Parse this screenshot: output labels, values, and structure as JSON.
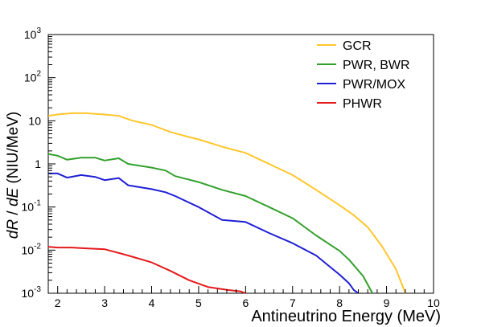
{
  "chart_data": {
    "type": "line",
    "xlabel": "Antineutrino Energy (MeV)",
    "ylabel_parts": [
      "dR",
      " / ",
      "dE",
      " (NIU/MeV)"
    ],
    "xlim": [
      1.8,
      10
    ],
    "ylim": [
      0.001,
      1000
    ],
    "yscale": "log",
    "grid": false,
    "legend_position": "top-right",
    "x_ticks": [
      {
        "v": 2,
        "label": "2"
      },
      {
        "v": 3,
        "label": "3"
      },
      {
        "v": 4,
        "label": "4"
      },
      {
        "v": 5,
        "label": "5"
      },
      {
        "v": 6,
        "label": "6"
      },
      {
        "v": 7,
        "label": "7"
      },
      {
        "v": 8,
        "label": "8"
      },
      {
        "v": 9,
        "label": "9"
      },
      {
        "v": 10,
        "label": "10"
      }
    ],
    "y_ticks": [
      {
        "v": 0.001,
        "base": "10",
        "exp": "-3"
      },
      {
        "v": 0.01,
        "base": "10",
        "exp": "-2"
      },
      {
        "v": 0.1,
        "base": "10",
        "exp": "-1"
      },
      {
        "v": 1,
        "base": "1",
        "exp": ""
      },
      {
        "v": 10,
        "base": "10",
        "exp": ""
      },
      {
        "v": 100,
        "base": "10",
        "exp": "2"
      },
      {
        "v": 1000,
        "base": "10",
        "exp": "3"
      }
    ],
    "series": [
      {
        "name": "GCR",
        "color": "#ffc62b",
        "points": [
          [
            1.8,
            13
          ],
          [
            2.0,
            14
          ],
          [
            2.3,
            15
          ],
          [
            2.6,
            15
          ],
          [
            3.0,
            14
          ],
          [
            3.3,
            13
          ],
          [
            3.6,
            10
          ],
          [
            4.0,
            8
          ],
          [
            4.4,
            5.5
          ],
          [
            4.8,
            4.2
          ],
          [
            5.0,
            3.7
          ],
          [
            5.5,
            2.5
          ],
          [
            6.0,
            1.8
          ],
          [
            6.5,
            1.0
          ],
          [
            7.0,
            0.55
          ],
          [
            7.5,
            0.25
          ],
          [
            8.0,
            0.11
          ],
          [
            8.3,
            0.065
          ],
          [
            8.6,
            0.034
          ],
          [
            8.9,
            0.0125
          ],
          [
            9.2,
            0.0036
          ],
          [
            9.4,
            0.001
          ]
        ]
      },
      {
        "name": "PWR, BWR",
        "color": "#33a02c",
        "points": [
          [
            1.8,
            1.7
          ],
          [
            2.0,
            1.55
          ],
          [
            2.2,
            1.25
          ],
          [
            2.5,
            1.4
          ],
          [
            2.8,
            1.4
          ],
          [
            3.0,
            1.2
          ],
          [
            3.3,
            1.35
          ],
          [
            3.5,
            1.0
          ],
          [
            4.0,
            0.82
          ],
          [
            4.3,
            0.7
          ],
          [
            4.5,
            0.52
          ],
          [
            5.0,
            0.38
          ],
          [
            5.5,
            0.25
          ],
          [
            6.0,
            0.18
          ],
          [
            6.5,
            0.1
          ],
          [
            7.0,
            0.055
          ],
          [
            7.5,
            0.022
          ],
          [
            8.0,
            0.0096
          ],
          [
            8.2,
            0.006
          ],
          [
            8.5,
            0.0025
          ],
          [
            8.7,
            0.001
          ]
        ]
      },
      {
        "name": "PWR/MOX",
        "color": "#1f1fd6",
        "points": [
          [
            1.8,
            0.6
          ],
          [
            2.0,
            0.6
          ],
          [
            2.2,
            0.48
          ],
          [
            2.5,
            0.55
          ],
          [
            2.8,
            0.5
          ],
          [
            3.0,
            0.42
          ],
          [
            3.3,
            0.47
          ],
          [
            3.5,
            0.32
          ],
          [
            4.0,
            0.26
          ],
          [
            4.3,
            0.22
          ],
          [
            4.5,
            0.18
          ],
          [
            5.0,
            0.1
          ],
          [
            5.3,
            0.066
          ],
          [
            5.5,
            0.05
          ],
          [
            6.0,
            0.045
          ],
          [
            6.5,
            0.025
          ],
          [
            7.0,
            0.0145
          ],
          [
            7.5,
            0.0075
          ],
          [
            8.0,
            0.0027
          ],
          [
            8.2,
            0.0017
          ],
          [
            8.3,
            0.0012
          ],
          [
            8.4,
            0.001
          ]
        ]
      },
      {
        "name": "PHWR",
        "color": "#e31a1c",
        "points": [
          [
            1.8,
            0.012
          ],
          [
            2.0,
            0.0115
          ],
          [
            2.3,
            0.0115
          ],
          [
            2.6,
            0.011
          ],
          [
            3.0,
            0.0105
          ],
          [
            3.5,
            0.0075
          ],
          [
            4.0,
            0.0052
          ],
          [
            4.4,
            0.0033
          ],
          [
            4.8,
            0.002
          ],
          [
            5.2,
            0.0014
          ],
          [
            5.6,
            0.0012
          ],
          [
            5.9,
            0.0011
          ],
          [
            6.0,
            0.001
          ]
        ]
      }
    ]
  }
}
